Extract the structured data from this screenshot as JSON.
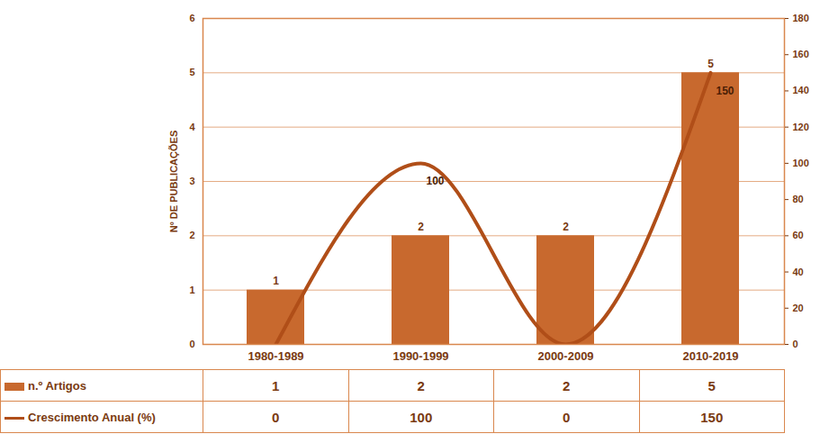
{
  "chart_data": {
    "type": "bar",
    "categories": [
      "1980-1989",
      "1990-1999",
      "2000-2009",
      "2010-2019"
    ],
    "ylabel": "Nº DE PUBLICAÇÕES",
    "ylim": [
      0,
      6
    ],
    "yticks": [
      0,
      1,
      2,
      3,
      4,
      5,
      6
    ],
    "y2lim": [
      0,
      180
    ],
    "y2ticks": [
      0,
      20,
      40,
      60,
      80,
      100,
      120,
      140,
      160,
      180
    ],
    "grid": true,
    "data_labels": true,
    "legend": "bottom",
    "series": [
      {
        "name": "n.º Artigos",
        "type": "bar",
        "color": "#c8692e",
        "values": [
          1,
          2,
          2,
          5
        ]
      },
      {
        "name": "Crescimento Anual (%)",
        "type": "line",
        "axis": "y2",
        "color": "#b04e18",
        "line_style": "smooth",
        "values": [
          0,
          100,
          0,
          150
        ]
      }
    ]
  }
}
